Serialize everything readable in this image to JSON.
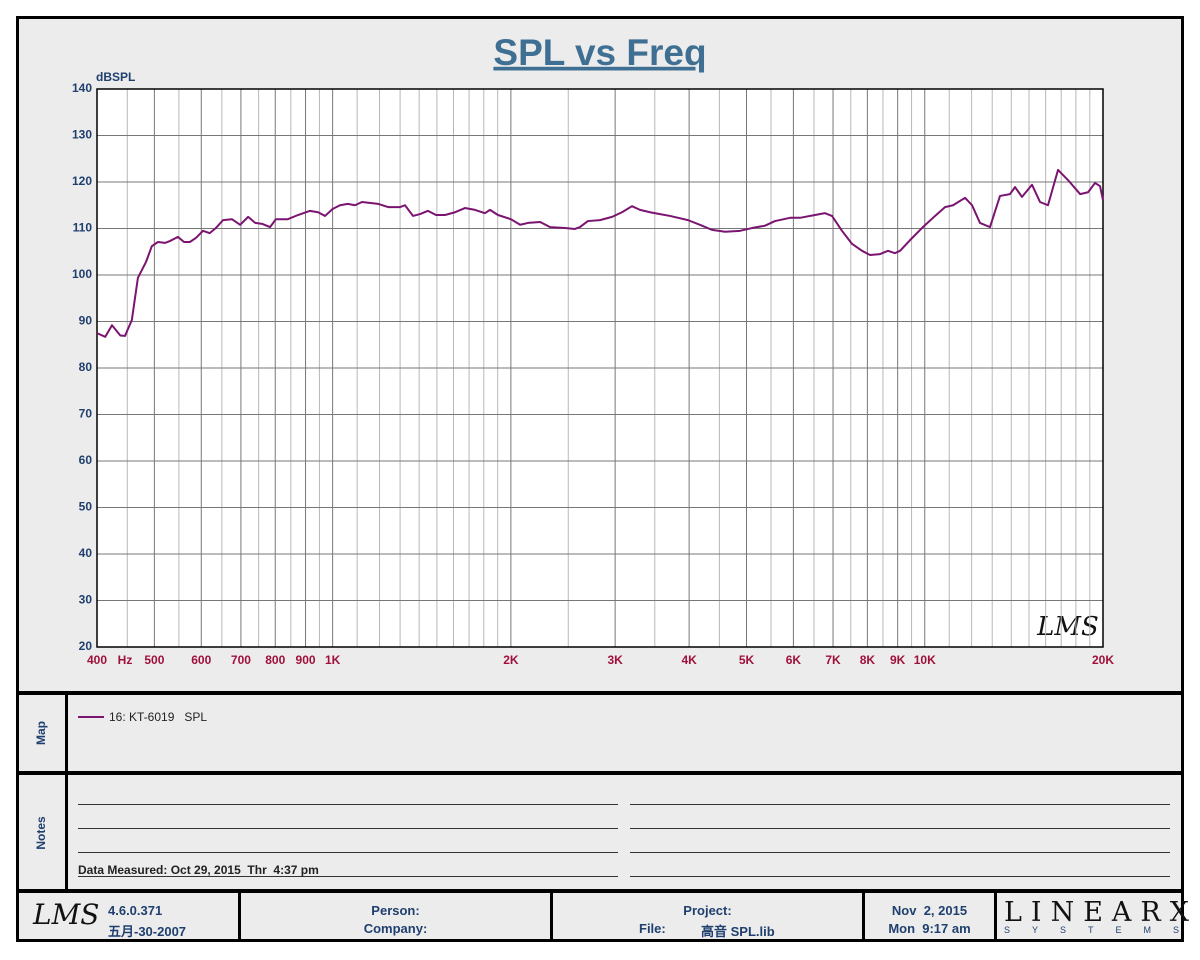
{
  "chart_data": {
    "type": "line",
    "title": "SPL vs Freq",
    "y_label": "dBSPL",
    "x_unit": "Hz",
    "watermark": "LMS",
    "xscale": "log",
    "xlim": [
      400,
      20000
    ],
    "ylim": [
      20,
      140
    ],
    "yticks": [
      20,
      30,
      40,
      50,
      60,
      70,
      80,
      90,
      100,
      110,
      120,
      130,
      140
    ],
    "xticks": [
      400,
      500,
      600,
      700,
      800,
      900,
      {
        "value": 1000,
        "label": "1K"
      },
      {
        "value": 2000,
        "label": "2K"
      },
      {
        "value": 3000,
        "label": "3K"
      },
      {
        "value": 4000,
        "label": "4K"
      },
      {
        "value": 5000,
        "label": "5K"
      },
      {
        "value": 6000,
        "label": "6K"
      },
      {
        "value": 7000,
        "label": "7K"
      },
      {
        "value": 8000,
        "label": "8K"
      },
      {
        "value": 9000,
        "label": "9K"
      },
      {
        "value": 10000,
        "label": "10K"
      },
      {
        "value": 20000,
        "label": "20K"
      }
    ],
    "x_minor_grid": [
      450,
      550,
      650,
      750,
      850,
      950,
      1100,
      1200,
      1300,
      1400,
      1500,
      1600,
      1700,
      1800,
      1900,
      2500,
      3500,
      4500,
      5500,
      6500,
      7500,
      8500,
      9500,
      11000,
      12000,
      13000,
      14000,
      15000,
      16000,
      17000,
      18000,
      19000
    ],
    "grid": true,
    "x": [
      400,
      413,
      424,
      438,
      446,
      458,
      469,
      484,
      495,
      507,
      521,
      531,
      548,
      561,
      574,
      588,
      604,
      620,
      635,
      653,
      676,
      698,
      720,
      740,
      760,
      784,
      802,
      840,
      874,
      916,
      945,
      971,
      1000,
      1029,
      1061,
      1091,
      1121,
      1193,
      1241,
      1300,
      1325,
      1367,
      1405,
      1449,
      1495,
      1548,
      1610,
      1673,
      1740,
      1808,
      1844,
      1902,
      2000,
      2073,
      2138,
      2241,
      2330,
      2468,
      2566,
      2616,
      2699,
      2828,
      2964,
      3081,
      3203,
      3305,
      3436,
      3572,
      3714,
      3982,
      4172,
      4372,
      4600,
      4876,
      5108,
      5372,
      5586,
      5924,
      6157,
      6528,
      6784,
      6972,
      7248,
      7536,
      7836,
      8084,
      8404,
      8668,
      8908,
      9084,
      9444,
      9892,
      10408,
      10820,
      11164,
      11696,
      12020,
      12396,
      12888,
      13400,
      13932,
      14204,
      14596,
      15176,
      15656,
      16148,
      16792,
      17460,
      18296,
      18872,
      19388,
      19772,
      20000
    ],
    "series": [
      {
        "name": "16: KT-6019   SPL",
        "color": "#7b1470",
        "values": [
          87.5,
          86.7,
          89.2,
          87,
          86.9,
          90.3,
          99.4,
          102.8,
          106.2,
          107.1,
          106.9,
          107.3,
          108.2,
          107.1,
          107.1,
          108,
          109.5,
          109,
          110.1,
          111.8,
          112,
          110.8,
          112.5,
          111.2,
          111,
          110.3,
          112,
          112,
          112.9,
          113.8,
          113.5,
          112.7,
          114.2,
          115,
          115.3,
          115,
          115.7,
          115.3,
          114.6,
          114.6,
          115,
          112.7,
          113.1,
          113.8,
          112.9,
          112.9,
          113.5,
          114.4,
          114,
          113.3,
          114,
          112.9,
          112,
          110.8,
          111.2,
          111.4,
          110.3,
          110.1,
          109.9,
          110.3,
          111.6,
          111.8,
          112.5,
          113.5,
          114.8,
          114,
          113.5,
          113.1,
          112.7,
          111.8,
          110.8,
          109.7,
          109.3,
          109.5,
          110.1,
          110.6,
          111.6,
          112.3,
          112.3,
          112.9,
          113.3,
          112.7,
          109.5,
          106.7,
          105.2,
          104.3,
          104.5,
          105.2,
          104.7,
          105.2,
          107.5,
          110.1,
          112.7,
          114.6,
          115,
          116.6,
          115,
          111.2,
          110.3,
          117,
          117.4,
          118.9,
          116.8,
          119.4,
          115.7,
          115,
          122.6,
          120.4,
          117.4,
          117.8,
          119.8,
          119.1,
          116.1
        ]
      }
    ]
  },
  "panels": {
    "map": "Map",
    "notes": "Notes",
    "data_measured": "Data Measured: Oct 29, 2015  Thr  4:37 pm"
  },
  "footer": {
    "logo": "LMS",
    "version": "4.6.0.371",
    "build_date": "五月-30-2007",
    "person": "Person:",
    "company": "Company:",
    "project": "Project:",
    "file_label": "File:",
    "file": "高音 SPL.lib",
    "date": "Nov  2, 2015",
    "time": "Mon  9:17 am",
    "brand": "LINEARX",
    "brand_sub": "SYSTEMS"
  }
}
